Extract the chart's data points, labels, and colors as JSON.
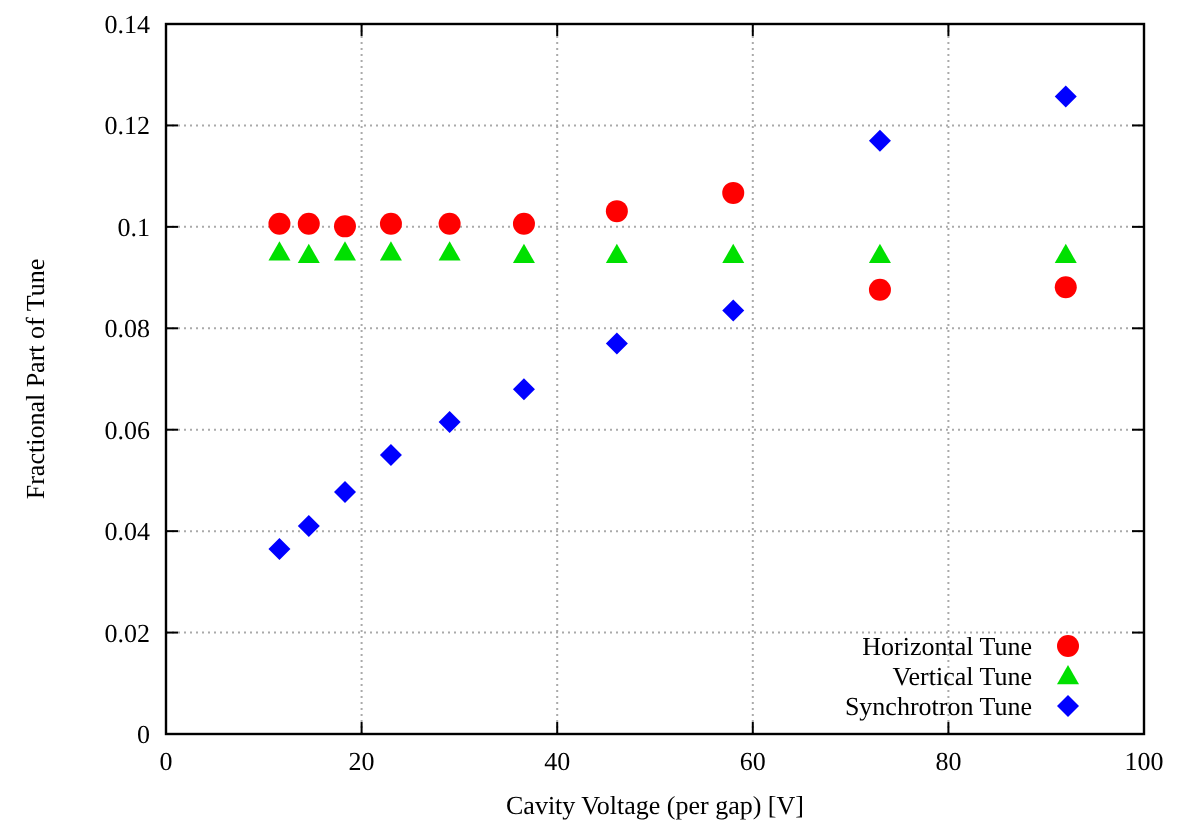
{
  "chart_data": {
    "type": "scatter",
    "xlabel": "Cavity Voltage (per gap) [V]",
    "ylabel": "Fractional Part of Tune",
    "x": [
      11.6,
      14.6,
      18.3,
      23,
      29,
      36.6,
      46.1,
      58,
      73,
      92
    ],
    "series": [
      {
        "name": "Horizontal Tune",
        "color": "#ff0000",
        "marker": "circle",
        "values": [
          0.1006,
          0.1006,
          0.1001,
          0.1006,
          0.1006,
          0.1006,
          0.1031,
          0.1067,
          0.0876,
          0.0881
        ]
      },
      {
        "name": "Vertical Tune",
        "color": "#00e000",
        "marker": "triangle",
        "values": [
          0.095,
          0.0945,
          0.095,
          0.095,
          0.095,
          0.0945,
          0.0945,
          0.0945,
          0.0945,
          0.0945
        ]
      },
      {
        "name": "Synchrotron Tune",
        "color": "#0000ff",
        "marker": "diamond",
        "values": [
          0.0365,
          0.041,
          0.0477,
          0.055,
          0.0615,
          0.068,
          0.077,
          0.0835,
          0.117,
          0.1257
        ]
      }
    ],
    "xlim": [
      0,
      100
    ],
    "xticks": [
      0,
      20,
      40,
      60,
      80,
      100
    ],
    "ylim": [
      0,
      0.14
    ],
    "yticks": [
      0,
      0.02,
      0.04,
      0.06,
      0.08,
      0.1,
      0.12,
      0.14
    ],
    "grid": true,
    "legend": "bottom right"
  }
}
